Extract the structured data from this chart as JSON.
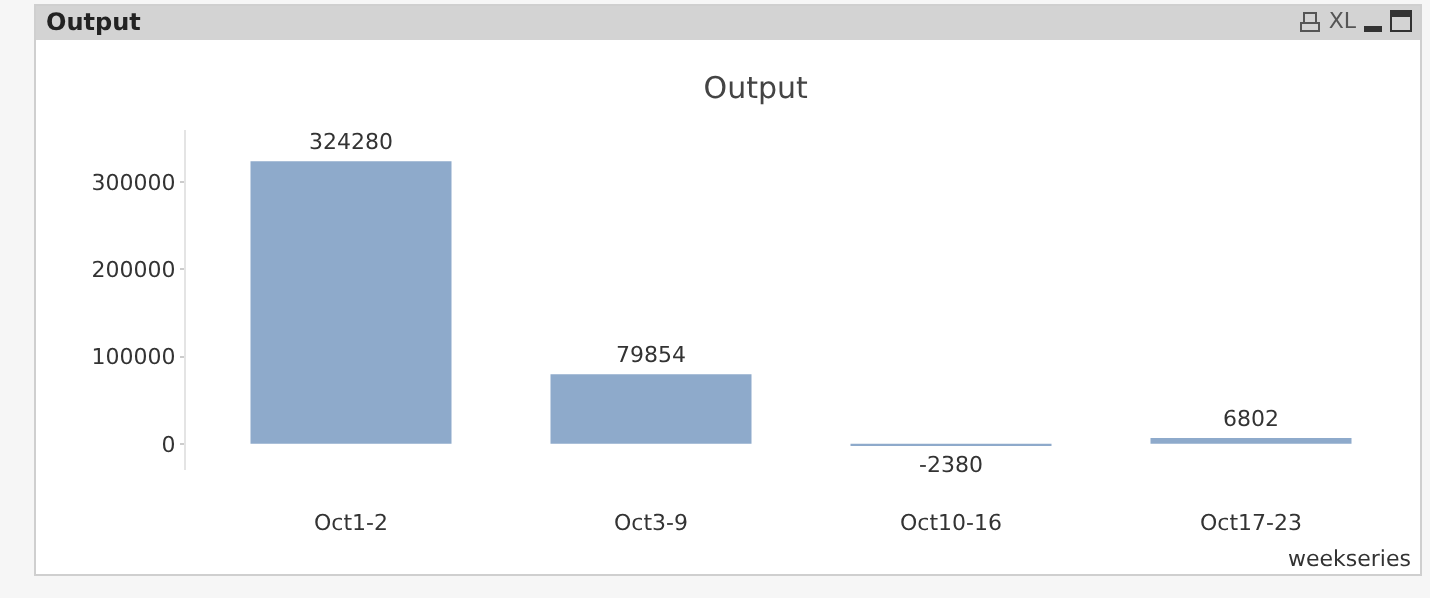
{
  "chart_data": {
    "type": "bar",
    "title": "Output",
    "xlabel": "weekseries",
    "annotations": [
      "Output",
      "XL"
    ],
    "categories": [
      "Oct1-2",
      "Oct3-9",
      "Oct10-16",
      "Oct17-23"
    ],
    "values": [
      324280,
      79854,
      -2380,
      6802
    ],
    "color": "#8eaacb",
    "ylim": [
      -30000,
      360000
    ],
    "yticks": [
      0,
      100000,
      200000,
      300000
    ],
    "data_labels": true,
    "grid": false,
    "legend": false
  }
}
